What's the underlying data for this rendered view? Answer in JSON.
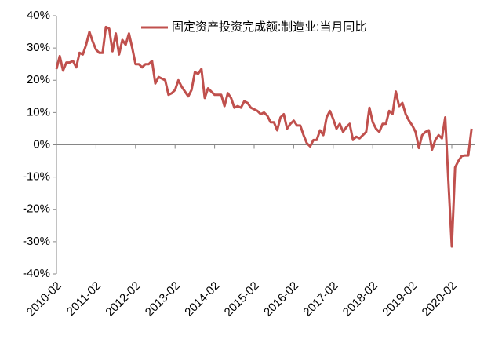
{
  "chart_data": {
    "type": "line",
    "categories": [
      "2010-02",
      null,
      null,
      null,
      null,
      null,
      null,
      null,
      null,
      null,
      null,
      null,
      "2011-02",
      null,
      null,
      null,
      null,
      null,
      null,
      null,
      null,
      null,
      null,
      null,
      "2012-02",
      null,
      null,
      null,
      null,
      null,
      null,
      null,
      null,
      null,
      null,
      null,
      "2013-02",
      null,
      null,
      null,
      null,
      null,
      null,
      null,
      null,
      null,
      null,
      null,
      "2014-02",
      null,
      null,
      null,
      null,
      null,
      null,
      null,
      null,
      null,
      null,
      null,
      "2015-02",
      null,
      null,
      null,
      null,
      null,
      null,
      null,
      null,
      null,
      null,
      null,
      "2016-02",
      null,
      null,
      null,
      null,
      null,
      null,
      null,
      null,
      null,
      null,
      null,
      "2017-02",
      null,
      null,
      null,
      null,
      null,
      null,
      null,
      null,
      null,
      null,
      null,
      "2018-02",
      null,
      null,
      null,
      null,
      null,
      null,
      null,
      null,
      null,
      null,
      null,
      "2019-02",
      null,
      null,
      null,
      null,
      null,
      null,
      null,
      null,
      null,
      null,
      null,
      "2020-02",
      null,
      null,
      null,
      null,
      null,
      null
    ],
    "series": [
      {
        "name": "固定资产投资完成额:制造业:当月同比",
        "color": "#c0504d",
        "values": [
          23.5,
          27.5,
          23,
          25.5,
          25.5,
          26,
          24,
          28.5,
          28,
          31,
          35,
          32,
          29.5,
          28.5,
          28.5,
          36.5,
          36,
          29,
          34.5,
          28,
          32.5,
          31,
          34.5,
          30,
          25,
          25,
          24,
          25,
          25,
          26,
          19,
          21,
          20.5,
          20,
          15.5,
          16,
          17,
          20,
          18,
          16.5,
          15,
          17,
          22.5,
          22,
          23.5,
          14.5,
          17.5,
          16.5,
          15.5,
          15.5,
          15.5,
          12,
          16,
          14.5,
          11.5,
          12,
          11.5,
          13.5,
          13,
          11.5,
          11,
          10.5,
          9.5,
          10,
          9,
          7,
          7,
          4.5,
          8.5,
          9.5,
          5,
          6.5,
          7.5,
          6,
          6,
          3,
          0.5,
          -0.5,
          1.5,
          1.5,
          4.5,
          3,
          8.5,
          10.5,
          8,
          5,
          6.5,
          4,
          5.5,
          6.5,
          1.5,
          2.5,
          2,
          3,
          4,
          11.5,
          7,
          5,
          4,
          6.5,
          6.5,
          10.5,
          9.5,
          16.5,
          12,
          13,
          9.5,
          7.5,
          6,
          4,
          -1,
          3,
          4,
          4.5,
          -1.5,
          1.5,
          3,
          2,
          8.5,
          -12,
          -31.5,
          -7,
          -5,
          -3.5,
          -3.3,
          -3.3,
          5
        ]
      }
    ],
    "ylim": [
      -40,
      40
    ],
    "yticks": [
      {
        "value": -40,
        "label": "-40%"
      },
      {
        "value": -30,
        "label": "-30%"
      },
      {
        "value": -20,
        "label": "-20%"
      },
      {
        "value": -10,
        "label": "-10%"
      },
      {
        "value": 0,
        "label": "0%"
      },
      {
        "value": 10,
        "label": "10%"
      },
      {
        "value": 20,
        "label": "20%"
      },
      {
        "value": 30,
        "label": "30%"
      },
      {
        "value": 40,
        "label": "40%"
      }
    ],
    "legend": "top"
  }
}
